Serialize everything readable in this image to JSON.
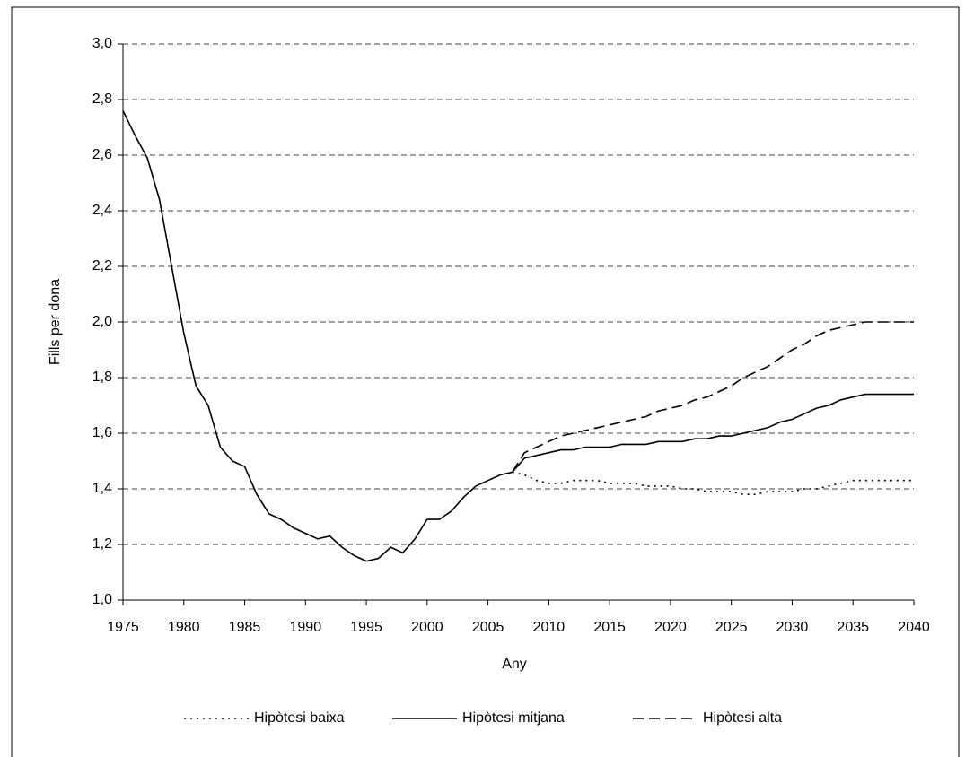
{
  "chart_data": {
    "type": "line",
    "xlabel": "Any",
    "ylabel": "Fills per dona",
    "x": [
      1975,
      1976,
      1977,
      1978,
      1979,
      1980,
      1981,
      1982,
      1983,
      1984,
      1985,
      1986,
      1987,
      1988,
      1989,
      1990,
      1991,
      1992,
      1993,
      1994,
      1995,
      1996,
      1997,
      1998,
      1999,
      2000,
      2001,
      2002,
      2003,
      2004,
      2005,
      2006,
      2007,
      2008,
      2009,
      2010,
      2011,
      2012,
      2013,
      2014,
      2015,
      2016,
      2017,
      2018,
      2019,
      2020,
      2021,
      2022,
      2023,
      2024,
      2025,
      2026,
      2027,
      2028,
      2029,
      2030,
      2031,
      2032,
      2033,
      2034,
      2035,
      2036,
      2037,
      2038,
      2039,
      2040
    ],
    "series": [
      {
        "name": "Hipòtesi baixa",
        "color": "#000000",
        "dash": "dotted",
        "values": [
          null,
          null,
          null,
          null,
          null,
          null,
          null,
          null,
          null,
          null,
          null,
          null,
          null,
          null,
          null,
          null,
          null,
          null,
          null,
          null,
          null,
          null,
          null,
          null,
          null,
          null,
          null,
          null,
          null,
          null,
          null,
          null,
          1.46,
          1.45,
          1.43,
          1.42,
          1.42,
          1.43,
          1.43,
          1.43,
          1.42,
          1.42,
          1.42,
          1.41,
          1.41,
          1.41,
          1.4,
          1.4,
          1.39,
          1.39,
          1.39,
          1.38,
          1.38,
          1.39,
          1.39,
          1.39,
          1.4,
          1.4,
          1.41,
          1.42,
          1.43,
          1.43,
          1.43,
          1.43,
          1.43,
          1.43
        ]
      },
      {
        "name": "Hipòtesi mitjana",
        "color": "#000000",
        "dash": "solid",
        "values": [
          2.76,
          2.67,
          2.59,
          2.44,
          2.2,
          1.96,
          1.77,
          1.7,
          1.55,
          1.5,
          1.48,
          1.38,
          1.31,
          1.29,
          1.26,
          1.24,
          1.22,
          1.23,
          1.19,
          1.16,
          1.14,
          1.15,
          1.19,
          1.17,
          1.22,
          1.29,
          1.29,
          1.32,
          1.37,
          1.41,
          1.43,
          1.45,
          1.46,
          1.51,
          1.52,
          1.53,
          1.54,
          1.54,
          1.55,
          1.55,
          1.55,
          1.56,
          1.56,
          1.56,
          1.57,
          1.57,
          1.57,
          1.58,
          1.58,
          1.59,
          1.59,
          1.6,
          1.61,
          1.62,
          1.64,
          1.65,
          1.67,
          1.69,
          1.7,
          1.72,
          1.73,
          1.74,
          1.74,
          1.74,
          1.74,
          1.74
        ]
      },
      {
        "name": "Hipòtesi alta",
        "color": "#000000",
        "dash": "dashed",
        "values": [
          null,
          null,
          null,
          null,
          null,
          null,
          null,
          null,
          null,
          null,
          null,
          null,
          null,
          null,
          null,
          null,
          null,
          null,
          null,
          null,
          null,
          null,
          null,
          null,
          null,
          null,
          null,
          null,
          null,
          null,
          null,
          null,
          1.46,
          1.53,
          1.55,
          1.57,
          1.59,
          1.6,
          1.61,
          1.62,
          1.63,
          1.64,
          1.65,
          1.66,
          1.68,
          1.69,
          1.7,
          1.72,
          1.73,
          1.75,
          1.77,
          1.8,
          1.82,
          1.84,
          1.87,
          1.9,
          1.92,
          1.95,
          1.97,
          1.98,
          1.99,
          2.0,
          2.0,
          2.0,
          2.0,
          2.0
        ]
      }
    ],
    "xlim": [
      1975,
      2040
    ],
    "xticks": [
      1975,
      1980,
      1985,
      1990,
      1995,
      2000,
      2005,
      2010,
      2015,
      2020,
      2025,
      2030,
      2035,
      2040
    ],
    "ylim": [
      1.0,
      3.0
    ],
    "yticks": [
      {
        "value": 1.0,
        "label": "1,0"
      },
      {
        "value": 1.2,
        "label": "1,2"
      },
      {
        "value": 1.4,
        "label": "1,4"
      },
      {
        "value": 1.6,
        "label": "1,6"
      },
      {
        "value": 1.8,
        "label": "1,8"
      },
      {
        "value": 2.0,
        "label": "2,0"
      },
      {
        "value": 2.2,
        "label": "2,2"
      },
      {
        "value": 2.4,
        "label": "2,4"
      },
      {
        "value": 2.6,
        "label": "2,6"
      },
      {
        "value": 2.8,
        "label": "2,8"
      },
      {
        "value": 3.0,
        "label": "3,0"
      }
    ],
    "grid": true,
    "legend": "bottom"
  }
}
